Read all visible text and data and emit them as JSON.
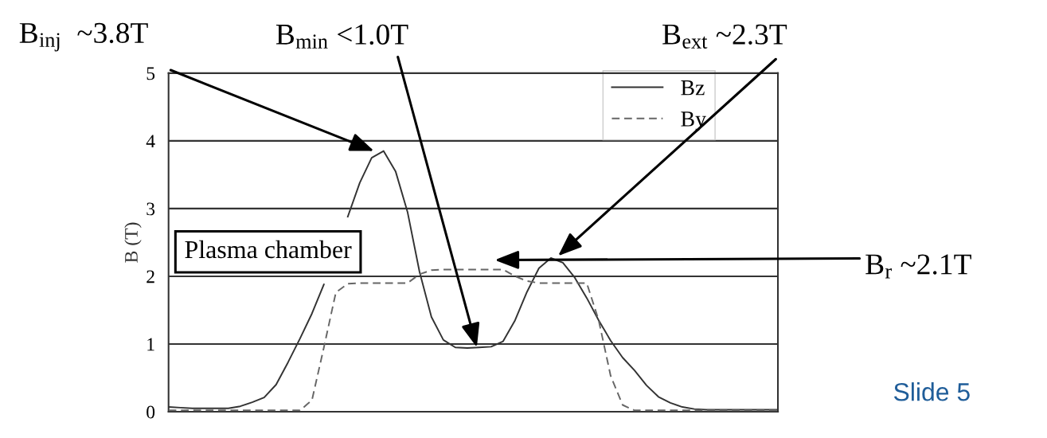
{
  "chart_data": {
    "type": "line",
    "ylabel": "B (T)",
    "ylim": [
      0,
      5
    ],
    "yticks": [
      0,
      1,
      2,
      3,
      4,
      5
    ],
    "tick_labels": "y",
    "grid": "y",
    "legend": "top right",
    "categories": [
      null,
      null,
      null,
      null,
      null,
      null,
      null,
      null,
      null,
      null,
      null,
      null,
      null,
      null,
      null,
      null,
      null,
      null,
      null,
      null,
      null,
      null,
      null,
      null,
      null,
      null,
      null,
      null,
      null,
      null,
      null,
      null,
      null,
      null,
      null,
      null,
      null,
      null,
      null,
      null,
      null,
      null,
      null,
      null,
      null,
      null,
      null,
      null,
      null,
      null,
      null,
      null
    ],
    "series": [
      {
        "name": "Bz",
        "color": "#333333",
        "line_style": "solid",
        "values": [
          0.07,
          0.06,
          0.05,
          0.05,
          0.05,
          0.05,
          0.08,
          0.14,
          0.21,
          0.4,
          0.73,
          1.08,
          1.45,
          1.88,
          null,
          2.88,
          3.38,
          3.75,
          3.85,
          3.55,
          2.95,
          2.07,
          1.4,
          1.06,
          0.95,
          0.94,
          0.95,
          0.96,
          1.04,
          1.35,
          1.77,
          2.12,
          2.27,
          2.2,
          1.98,
          1.68,
          1.35,
          1.05,
          0.8,
          0.61,
          0.39,
          0.22,
          0.13,
          0.07,
          0.04,
          0.03,
          0.03,
          0.03,
          0.03,
          0.03,
          0.03,
          0.03
        ]
      },
      {
        "name": "By",
        "color": "#666666",
        "line_style": "dashed",
        "values": [
          0.02,
          0.02,
          0.02,
          0.02,
          0.02,
          0.02,
          0.02,
          0.02,
          0.02,
          0.02,
          0.02,
          0.02,
          0.17,
          0.95,
          1.76,
          1.89,
          1.9,
          1.9,
          1.9,
          1.9,
          1.9,
          2.03,
          2.09,
          2.1,
          2.1,
          2.1,
          2.1,
          2.1,
          2.1,
          2.0,
          1.93,
          1.9,
          1.9,
          1.9,
          1.9,
          1.9,
          1.35,
          0.53,
          0.1,
          0.02,
          0.02,
          0.02,
          0.02,
          0.02,
          0.02,
          0.02,
          0.02,
          0.02,
          0.02,
          0.02,
          0.02,
          0.02
        ]
      }
    ],
    "annotations": [
      "B$_{inj}$  ~3.8T",
      "B$_{min}$ <1.0T",
      "B$_{ext}$ ~2.3T",
      "B$_{r}$ ~2.1T",
      "Plasma chamber",
      "Slide 5"
    ]
  }
}
